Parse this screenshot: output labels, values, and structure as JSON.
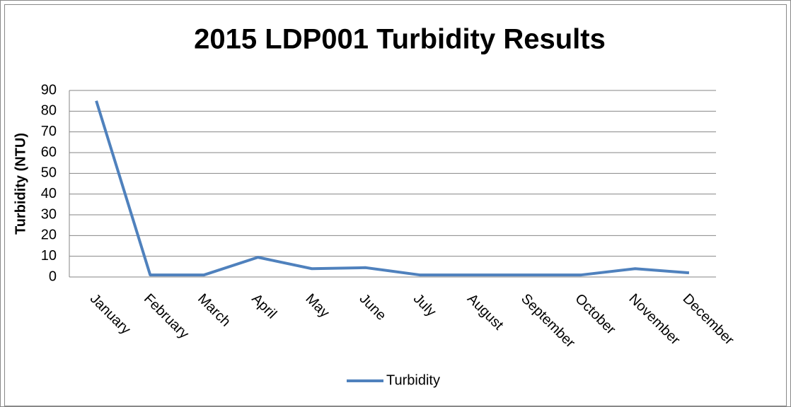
{
  "chart_data": {
    "type": "line",
    "title": "2015 LDP001 Turbidity Results",
    "y_label": "Turbidity (NTU)",
    "categories": [
      "January",
      "February",
      "March",
      "April",
      "May",
      "June",
      "July",
      "August",
      "September",
      "October",
      "November",
      "December"
    ],
    "series": [
      {
        "name": "Turbidity",
        "color": "#4f81bd",
        "values": [
          85,
          1,
          1,
          9.5,
          4,
          4.5,
          1,
          1,
          1,
          1,
          4,
          2
        ]
      }
    ],
    "ylim": [
      0,
      90
    ],
    "yticks": [
      0,
      10,
      20,
      30,
      40,
      50,
      60,
      70,
      80,
      90
    ],
    "grid": true,
    "legend": "bottom"
  }
}
